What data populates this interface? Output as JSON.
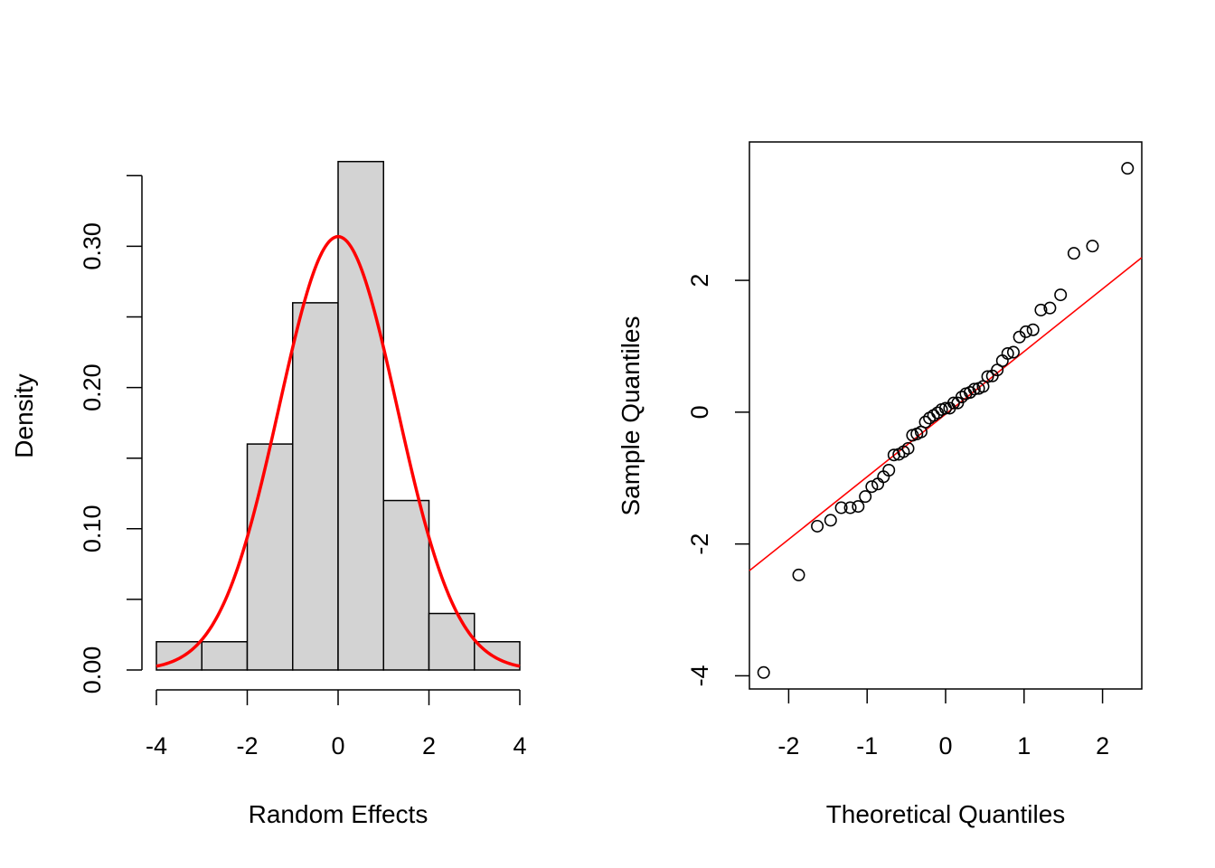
{
  "chart_data": [
    {
      "type": "bar",
      "subtype": "histogram_with_density_curve",
      "title": "",
      "xlabel": "Random Effects",
      "ylabel": "Density",
      "xlim": [
        -4,
        4
      ],
      "ylim": [
        0,
        0.35
      ],
      "xticks": [
        -4,
        -2,
        0,
        2,
        4
      ],
      "yticks": [
        0.0,
        0.1,
        0.2,
        0.3
      ],
      "ytick_labels": [
        "0.00",
        "0.10",
        "0.20",
        "0.30"
      ],
      "xtick_labels": [
        "-4",
        "-2",
        "0",
        "2",
        "4"
      ],
      "bins": [
        {
          "from": -4,
          "to": -3,
          "density": 0.02
        },
        {
          "from": -3,
          "to": -2,
          "density": 0.02
        },
        {
          "from": -2,
          "to": -1,
          "density": 0.16
        },
        {
          "from": -1,
          "to": 0,
          "density": 0.26
        },
        {
          "from": 0,
          "to": 1,
          "density": 0.36
        },
        {
          "from": 1,
          "to": 2,
          "density": 0.12
        },
        {
          "from": 2,
          "to": 3,
          "density": 0.04
        },
        {
          "from": 3,
          "to": 4,
          "density": 0.02
        }
      ],
      "density_curve": {
        "mean": 0.0,
        "sd": 1.3,
        "color": "#FF0000"
      },
      "bar_fill": "#D3D3D3",
      "bar_stroke": "#000000"
    },
    {
      "type": "scatter",
      "subtype": "normal_qq_plot",
      "title": "",
      "xlabel": "Theoretical Quantiles",
      "ylabel": "Sample Quantiles",
      "xlim": [
        -2.5,
        2.5
      ],
      "ylim": [
        -4.2,
        4.1
      ],
      "xticks": [
        -2,
        -1,
        0,
        1,
        2
      ],
      "xtick_labels": [
        "-2",
        "-1",
        "0",
        "1",
        "2"
      ],
      "yticks": [
        -4,
        -2,
        0,
        2
      ],
      "ytick_labels": [
        "-4",
        "-2",
        "0",
        "2"
      ],
      "points_y": [
        -3.95,
        -2.47,
        -1.73,
        -1.64,
        -1.45,
        -1.45,
        -1.43,
        -1.28,
        -1.13,
        -1.09,
        -0.98,
        -0.88,
        -0.65,
        -0.64,
        -0.6,
        -0.55,
        -0.35,
        -0.33,
        -0.3,
        -0.15,
        -0.09,
        -0.05,
        -0.01,
        0.04,
        0.06,
        0.06,
        0.14,
        0.14,
        0.23,
        0.28,
        0.3,
        0.35,
        0.36,
        0.39,
        0.54,
        0.55,
        0.64,
        0.78,
        0.89,
        0.91,
        1.14,
        1.22,
        1.25,
        1.55,
        1.58,
        1.78,
        2.41,
        2.52,
        3.7
      ],
      "reference_line": {
        "intercept": -0.03,
        "slope": 0.95,
        "color": "#FF0000"
      },
      "point_color": "#000000"
    }
  ]
}
